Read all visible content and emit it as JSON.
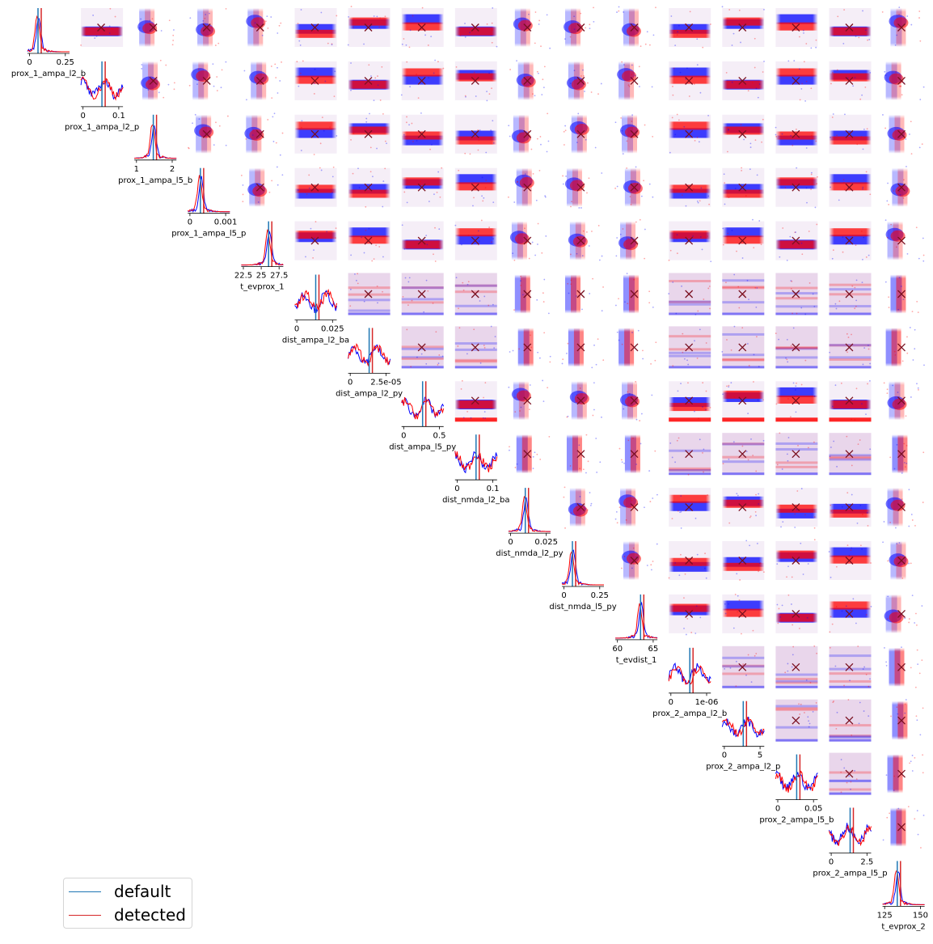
{
  "chart_data": {
    "type": "scatter",
    "layout": "corner-pairplot",
    "parameters": [
      {
        "label": "prox_1_ampa_l2_b",
        "ticks": [
          "0",
          "0.25"
        ]
      },
      {
        "label": "prox_1_ampa_l2_p",
        "ticks": [
          "0",
          "0.1"
        ]
      },
      {
        "label": "prox_1_ampa_l5_b",
        "ticks": [
          "1",
          "2"
        ]
      },
      {
        "label": "prox_1_ampa_l5_p",
        "ticks": [
          "0",
          "0.001"
        ]
      },
      {
        "label": "t_evprox_1",
        "ticks": [
          "22.5",
          "25",
          "27.5"
        ]
      },
      {
        "label": "dist_ampa_l2_ba",
        "ticks": [
          "0",
          "0.025"
        ]
      },
      {
        "label": "dist_ampa_l2_py",
        "ticks": [
          "0",
          "2.5e-05"
        ]
      },
      {
        "label": "dist_ampa_l5_py",
        "ticks": [
          "0",
          "0.5"
        ]
      },
      {
        "label": "dist_nmda_l2_ba",
        "ticks": [
          "0",
          "0.1"
        ]
      },
      {
        "label": "dist_nmda_l2_py",
        "ticks": [
          "0",
          "0.025"
        ]
      },
      {
        "label": "dist_nmda_l5_py",
        "ticks": [
          "0",
          "0.25"
        ]
      },
      {
        "label": "t_evdist_1",
        "ticks": [
          "60",
          "65"
        ]
      },
      {
        "label": "prox_2_ampa_l2_b",
        "ticks": [
          "0",
          "1e-06"
        ]
      },
      {
        "label": "prox_2_ampa_l2_p",
        "ticks": [
          "0",
          "5"
        ]
      },
      {
        "label": "prox_2_ampa_l5_b",
        "ticks": [
          "0",
          "0.05"
        ]
      },
      {
        "label": "prox_2_ampa_l5_p",
        "ticks": [
          "0",
          "2.5"
        ]
      },
      {
        "label": "t_evprox_2",
        "ticks": [
          "125",
          "150"
        ]
      }
    ],
    "series": [
      {
        "name": "default",
        "color": "#1f77b4"
      },
      {
        "name": "detected",
        "color": "#d62728"
      }
    ],
    "scatter_colors": {
      "blue": "#0000ff",
      "red": "#ff0000",
      "marker_dark": "#7a1020"
    },
    "legend_position": "lower-left"
  }
}
